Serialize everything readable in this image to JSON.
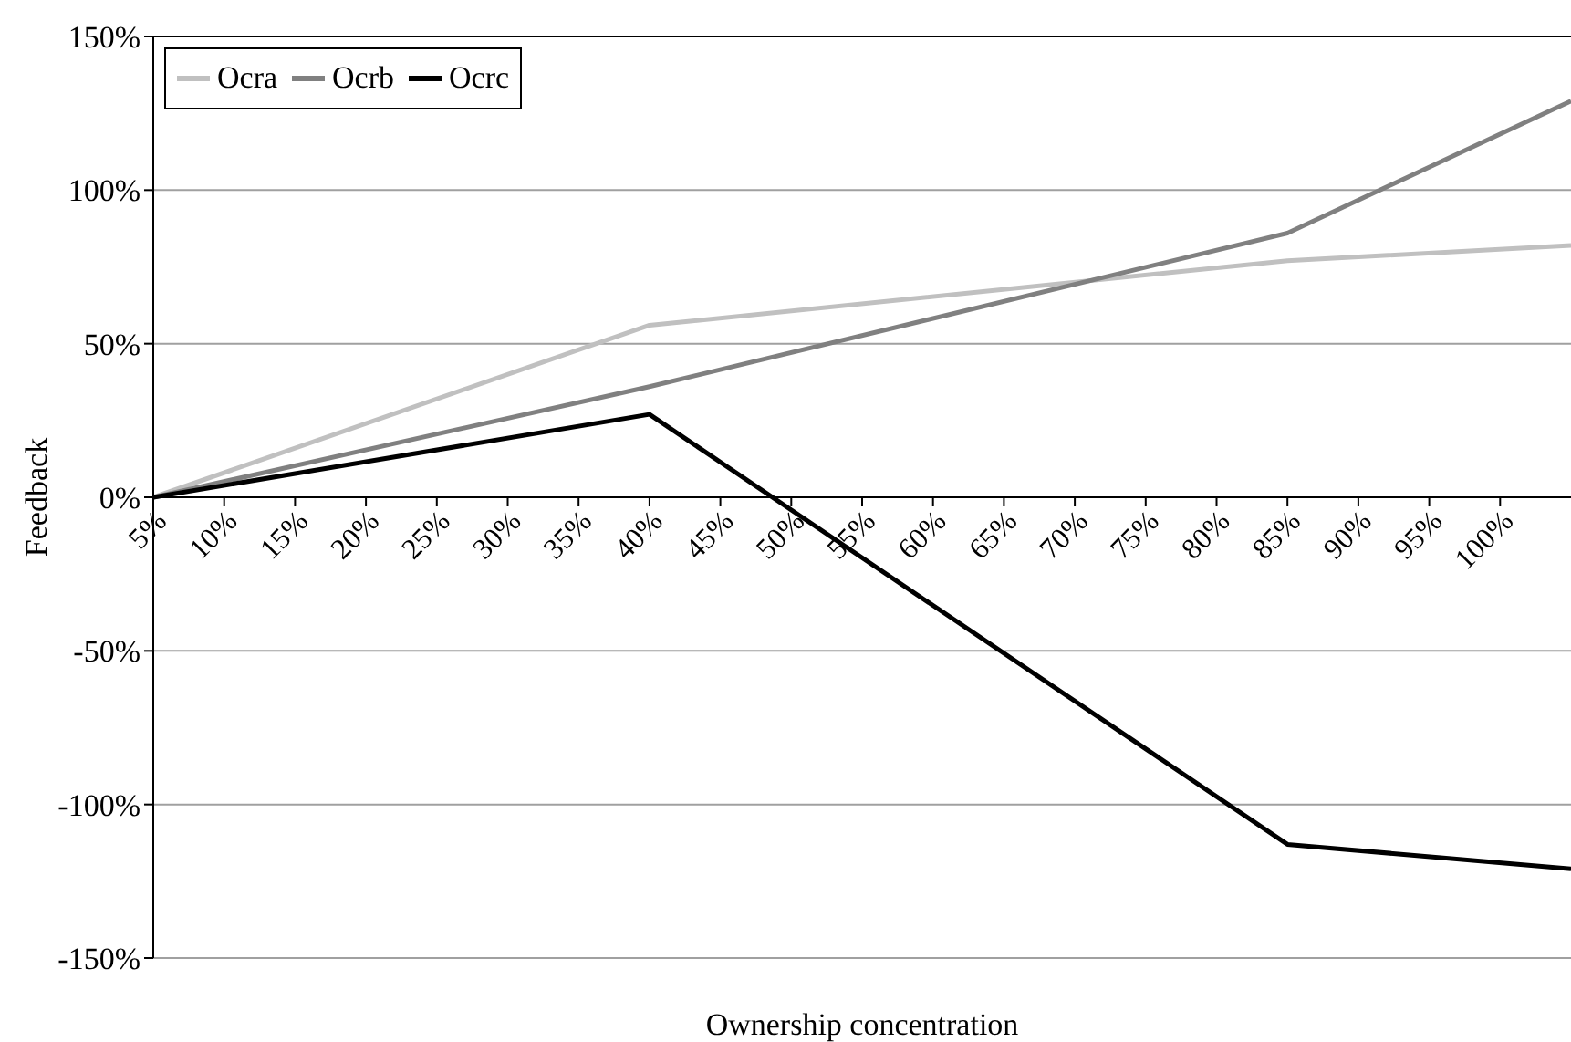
{
  "chart_data": {
    "type": "line",
    "xlabel": "Ownership concentration",
    "ylabel": "Feedback",
    "x": [
      5,
      40,
      85,
      105
    ],
    "series": [
      {
        "name": "Ocra",
        "color": "#c0c0c0",
        "values": [
          0,
          56,
          77,
          82
        ]
      },
      {
        "name": "Ocrb",
        "color": "#808080",
        "values": [
          0,
          36,
          86,
          129
        ]
      },
      {
        "name": "Ocrc",
        "color": "#000000",
        "values": [
          0,
          27,
          -113,
          -121
        ]
      }
    ],
    "xlim": [
      5,
      105
    ],
    "xticks": [
      {
        "value": 5,
        "label": "5%"
      },
      {
        "value": 10,
        "label": "10%"
      },
      {
        "value": 15,
        "label": "15%"
      },
      {
        "value": 20,
        "label": "20%"
      },
      {
        "value": 25,
        "label": "25%"
      },
      {
        "value": 30,
        "label": "30%"
      },
      {
        "value": 35,
        "label": "35%"
      },
      {
        "value": 40,
        "label": "40%"
      },
      {
        "value": 45,
        "label": "45%"
      },
      {
        "value": 50,
        "label": "50%"
      },
      {
        "value": 55,
        "label": "55%"
      },
      {
        "value": 60,
        "label": "60%"
      },
      {
        "value": 65,
        "label": "65%"
      },
      {
        "value": 70,
        "label": "70%"
      },
      {
        "value": 75,
        "label": "75%"
      },
      {
        "value": 80,
        "label": "80%"
      },
      {
        "value": 85,
        "label": "85%"
      },
      {
        "value": 90,
        "label": "90%"
      },
      {
        "value": 95,
        "label": "95%"
      },
      {
        "value": 100,
        "label": "100%"
      }
    ],
    "ylim": [
      -150,
      150
    ],
    "yticks": [
      {
        "value": -150,
        "label": "-150%"
      },
      {
        "value": -100,
        "label": "-100%"
      },
      {
        "value": -50,
        "label": "-50%"
      },
      {
        "value": 0,
        "label": "0%"
      },
      {
        "value": 50,
        "label": "50%"
      },
      {
        "value": 100,
        "label": "100%"
      },
      {
        "value": 150,
        "label": "150%"
      }
    ],
    "grid": "y",
    "legend": "top left"
  }
}
